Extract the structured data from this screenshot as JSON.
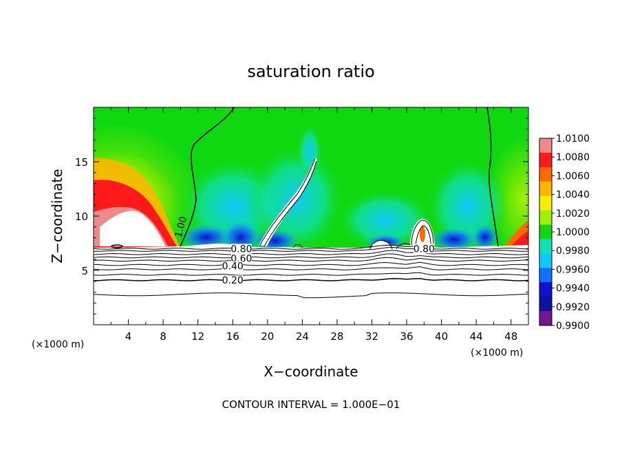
{
  "chart_data": {
    "type": "heatmap",
    "title": "saturation ratio",
    "xlabel": "X−coordinate",
    "ylabel": "Z−coordinate",
    "x_unit": "(×1000 m)",
    "z_unit": "(×1000 m)",
    "xlim": [
      0,
      50
    ],
    "ylim": [
      0,
      20
    ],
    "x_ticks": [
      4,
      8,
      12,
      16,
      20,
      24,
      28,
      32,
      36,
      40,
      44,
      48
    ],
    "y_ticks": [
      5,
      10,
      15
    ],
    "footer": "CONTOUR INTERVAL = 1.000E−01",
    "colorbar": {
      "min": 0.99,
      "max": 1.01,
      "labels": [
        "1.0100",
        "1.0080",
        "1.0060",
        "1.0040",
        "1.0020",
        "1.0000",
        "0.9980",
        "0.9960",
        "0.9940",
        "0.9920",
        "0.9900"
      ],
      "colors": [
        "#f08a8a",
        "#ff1a1a",
        "#ff6a00",
        "#ffb400",
        "#f0f000",
        "#a0f000",
        "#10d810",
        "#10e0b4",
        "#10c8ff",
        "#1070ff",
        "#1010d0",
        "#1010a0",
        "#701890"
      ]
    },
    "contour_labels": [
      {
        "text": "1.00",
        "x": 10.0,
        "z": 9.0
      },
      {
        "text": "0.80",
        "x": 17.0,
        "z": 7.0
      },
      {
        "text": "0.60",
        "x": 17.0,
        "z": 6.1
      },
      {
        "text": "0.40",
        "x": 16.0,
        "z": 5.4
      },
      {
        "text": "0.20",
        "x": 16.0,
        "z": 4.1
      },
      {
        "text": "0.80",
        "x": 38.0,
        "z": 7.0
      }
    ],
    "contour_lines_z": [
      7.0,
      6.8,
      6.5,
      6.2,
      5.9,
      5.5,
      5.1,
      4.6,
      4.1,
      2.8
    ]
  }
}
